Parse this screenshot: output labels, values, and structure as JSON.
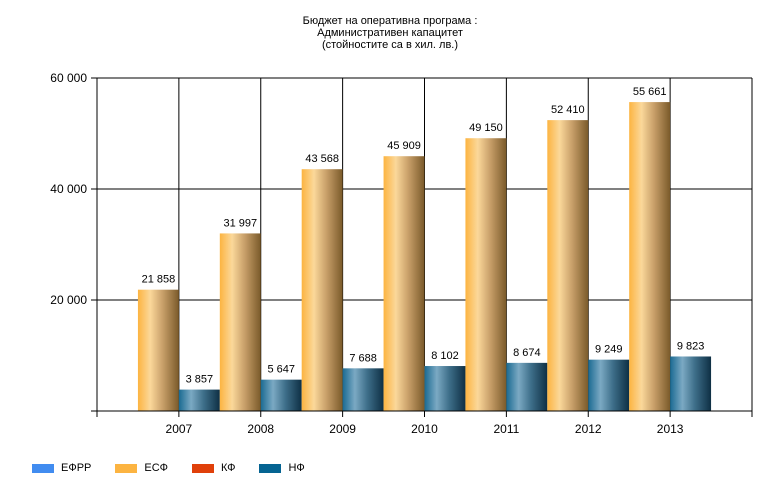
{
  "chart_data": {
    "type": "bar",
    "title": [
      "Бюджет на оперативна програма :",
      "Административен капацитет",
      "(стойностите са в хил. лв.)"
    ],
    "xlabel": "",
    "ylabel": "",
    "categories": [
      "2007",
      "2008",
      "2009",
      "2010",
      "2011",
      "2012",
      "2013"
    ],
    "ylim": [
      0,
      60000
    ],
    "yticks": [
      0,
      20000,
      40000,
      60000
    ],
    "ytick_labels": [
      "",
      "20 000",
      "40 000",
      "60 000"
    ],
    "grid": true,
    "legend_position": "bottom-left",
    "series": [
      {
        "name": "ЕФРР",
        "color": "#418CF0",
        "values": [
          null,
          null,
          null,
          null,
          null,
          null,
          null
        ],
        "labels": []
      },
      {
        "name": "ЕСФ",
        "color": "#FCB441",
        "values": [
          21858,
          31997,
          43568,
          45909,
          49150,
          52410,
          55661
        ],
        "labels": [
          "21 858",
          "31 997",
          "43 568",
          "45 909",
          "49 150",
          "52 410",
          "55 661"
        ]
      },
      {
        "name": "КФ",
        "color": "#E0400A",
        "values": [
          null,
          null,
          null,
          null,
          null,
          null,
          null
        ],
        "labels": []
      },
      {
        "name": "НФ",
        "color": "#056492",
        "values": [
          3857,
          5647,
          7688,
          8102,
          8674,
          9249,
          9823
        ],
        "labels": [
          "3 857",
          "5 647",
          "7 688",
          "8 102",
          "8 674",
          "9 249",
          "9 823"
        ]
      }
    ]
  }
}
